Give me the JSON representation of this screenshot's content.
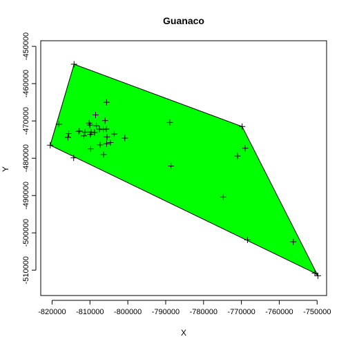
{
  "chart_data": {
    "type": "scatter",
    "title": "Guanaco",
    "xlabel": "X",
    "ylabel": "Y",
    "xlim": [
      -823000,
      -747500
    ],
    "ylim": [
      -516800,
      -448500
    ],
    "xticks": [
      -820000,
      -810000,
      -800000,
      -790000,
      -780000,
      -770000,
      -760000,
      -750000
    ],
    "xtick_labels": [
      "-820000",
      "-810000",
      "-800000",
      "-790000",
      "-780000",
      "-770000",
      "-760000",
      "-750000"
    ],
    "yticks": [
      -510000,
      -500000,
      -490000,
      -480000,
      -470000,
      -460000,
      -450000
    ],
    "ytick_labels": [
      "-510000",
      "-500000",
      "-490000",
      "-480000",
      "-470000",
      "-460000",
      "-450000"
    ],
    "grid": false,
    "hull_fill": "#00ff00",
    "hull_stroke": "#000000",
    "hull": [
      [
        -820500,
        -476500
      ],
      [
        -814200,
        -454800
      ],
      [
        -769800,
        -471500
      ],
      [
        -749800,
        -511500
      ],
      [
        -750600,
        -510800
      ]
    ],
    "points": [
      [
        -820500,
        -476500
      ],
      [
        -818200,
        -470900
      ],
      [
        -815800,
        -474400
      ],
      [
        -815600,
        -473400
      ],
      [
        -814300,
        -479900
      ],
      [
        -814200,
        -454800
      ],
      [
        -813000,
        -472800
      ],
      [
        -812700,
        -472700
      ],
      [
        -811600,
        -474000
      ],
      [
        -811300,
        -473000
      ],
      [
        -810200,
        -470600
      ],
      [
        -810000,
        -471100
      ],
      [
        -809700,
        -473000
      ],
      [
        -809900,
        -473600
      ],
      [
        -809800,
        -477500
      ],
      [
        -808800,
        -473100
      ],
      [
        -808500,
        -468400
      ],
      [
        -808300,
        -471300
      ],
      [
        -807500,
        -472200
      ],
      [
        -807300,
        -476400
      ],
      [
        -806500,
        -472300
      ],
      [
        -806400,
        -479000
      ],
      [
        -806000,
        -469900
      ],
      [
        -805600,
        -465000
      ],
      [
        -805700,
        -472200
      ],
      [
        -805500,
        -474300
      ],
      [
        -805600,
        -476100
      ],
      [
        -804600,
        -475800
      ],
      [
        -803600,
        -473500
      ],
      [
        -800800,
        -474600
      ],
      [
        -788900,
        -470400
      ],
      [
        -788600,
        -482100
      ],
      [
        -774800,
        -490400
      ],
      [
        -771000,
        -479400
      ],
      [
        -769800,
        -471500
      ],
      [
        -769000,
        -477300
      ],
      [
        -768400,
        -501900
      ],
      [
        -756300,
        -502400
      ],
      [
        -750600,
        -510800
      ],
      [
        -749800,
        -511500
      ]
    ],
    "marker": "+"
  }
}
